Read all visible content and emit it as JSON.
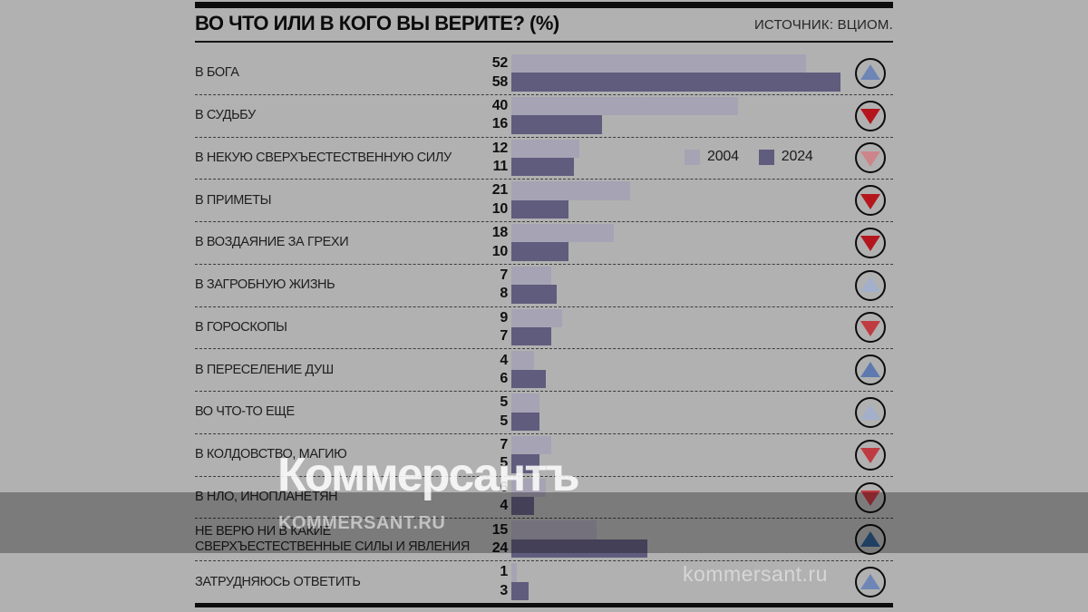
{
  "header": {
    "title": "ВО ЧТО ИЛИ В КОГО ВЫ ВЕРИТЕ? (%)",
    "source": "ИСТОЧНИК: ВЦИОМ."
  },
  "legend": {
    "items": [
      {
        "label": "2004",
        "color": "#a6a3b4"
      },
      {
        "label": "2024",
        "color": "#605c7d"
      }
    ]
  },
  "watermarks": {
    "big": "Коммерсантъ",
    "small_caps": "KOMMERSANT.RU",
    "bottom": "kommersant.ru"
  },
  "colors": {
    "background": "#b1b1b1",
    "bar_2004": "#a6a3b4",
    "bar_2024": "#605c7d",
    "arrow_blue_dark": "#2e5c8e",
    "arrow_blue_medium": "#6e86b6",
    "arrow_blue_pale": "#a2b0cb",
    "arrow_red_deep": "#b5161d",
    "arrow_red_medium": "#c03a41",
    "arrow_red_pale": "#cd858b"
  },
  "rows": [
    {
      "label": "В БОГА",
      "label2": "",
      "v2004": 52,
      "v2024": 58,
      "trend": "up",
      "trend_color": "#6e86b6"
    },
    {
      "label": "В СУДЬБУ",
      "label2": "",
      "v2004": 40,
      "v2024": 16,
      "trend": "down",
      "trend_color": "#b5161d"
    },
    {
      "label": "В НЕКУЮ СВЕРХЪЕСТЕСТВЕННУЮ СИЛУ",
      "label2": "",
      "v2004": 12,
      "v2024": 11,
      "trend": "down",
      "trend_color": "#cd858b"
    },
    {
      "label": "В ПРИМЕТЫ",
      "label2": "",
      "v2004": 21,
      "v2024": 10,
      "trend": "down",
      "trend_color": "#b5161d"
    },
    {
      "label": "В ВОЗДАЯНИЕ ЗА ГРЕХИ",
      "label2": "",
      "v2004": 18,
      "v2024": 10,
      "trend": "down",
      "trend_color": "#b5161d"
    },
    {
      "label": "В ЗАГРОБНУЮ ЖИЗНЬ",
      "label2": "",
      "v2004": 7,
      "v2024": 8,
      "trend": "up",
      "trend_color": "#a2b0cb"
    },
    {
      "label": "В ГОРОСКОПЫ",
      "label2": "",
      "v2004": 9,
      "v2024": 7,
      "trend": "down",
      "trend_color": "#c03a41"
    },
    {
      "label": "В ПЕРЕСЕЛЕНИЕ ДУШ",
      "label2": "",
      "v2004": 4,
      "v2024": 6,
      "trend": "up",
      "trend_color": "#5e79b0"
    },
    {
      "label": "ВО ЧТО-ТО ЕЩЕ",
      "label2": "",
      "v2004": 5,
      "v2024": 5,
      "trend": "up",
      "trend_color": "#a2b0cb"
    },
    {
      "label": "В КОЛДОВСТВО, МАГИЮ",
      "label2": "",
      "v2004": 7,
      "v2024": 5,
      "trend": "down",
      "trend_color": "#c03a41"
    },
    {
      "label": "В НЛО, ИНОПЛАНЕТЯН",
      "label2": "",
      "v2004": 6,
      "v2024": 4,
      "trend": "down",
      "trend_color": "#c03a41"
    },
    {
      "label": "НЕ ВЕРЮ НИ В КАКИЕ",
      "label2": "СВЕРХЪЕСТЕСТВЕННЫЕ СИЛЫ И ЯВЛЕНИЯ",
      "v2004": 15,
      "v2024": 24,
      "trend": "up",
      "trend_color": "#2e5c8e"
    },
    {
      "label": "ЗАТРУДНЯЮСЬ ОТВЕТИТЬ",
      "label2": "",
      "v2004": 1,
      "v2024": 3,
      "trend": "up",
      "trend_color": "#6e86b6"
    }
  ],
  "chart_data": {
    "type": "bar",
    "orientation": "horizontal",
    "title": "ВО ЧТО ИЛИ В КОГО ВЫ ВЕРИТЕ? (%)",
    "source": "ИСТОЧНИК: ВЦИОМ.",
    "unit": "%",
    "value_range": [
      0,
      58
    ],
    "grid": false,
    "legend_position": "inline-right-of-third-row",
    "categories": [
      "В БОГА",
      "В СУДЬБУ",
      "В НЕКУЮ СВЕРХЪЕСТЕСТВЕННУЮ СИЛУ",
      "В ПРИМЕТЫ",
      "В ВОЗДАЯНИЕ ЗА ГРЕХИ",
      "В ЗАГРОБНУЮ ЖИЗНЬ",
      "В ГОРОСКОПЫ",
      "В ПЕРЕСЕЛЕНИЕ ДУШ",
      "ВО ЧТО-ТО ЕЩЕ",
      "В КОЛДОВСТВО, МАГИЮ",
      "В НЛО, ИНОПЛАНЕТЯН",
      "НЕ ВЕРЮ НИ В КАКИЕ СВЕРХЪЕСТЕСТВЕННЫЕ СИЛЫ И ЯВЛЕНИЯ",
      "ЗАТРУДНЯЮСЬ ОТВЕТИТЬ"
    ],
    "series": [
      {
        "name": "2004",
        "values": [
          52,
          40,
          12,
          21,
          18,
          7,
          9,
          4,
          5,
          7,
          6,
          15,
          1
        ]
      },
      {
        "name": "2024",
        "values": [
          58,
          16,
          11,
          10,
          10,
          8,
          7,
          6,
          5,
          5,
          4,
          24,
          3
        ]
      }
    ],
    "trend_indicators": [
      "up",
      "down",
      "down",
      "down",
      "down",
      "up",
      "down",
      "up",
      "up",
      "down",
      "down",
      "up",
      "up"
    ]
  }
}
